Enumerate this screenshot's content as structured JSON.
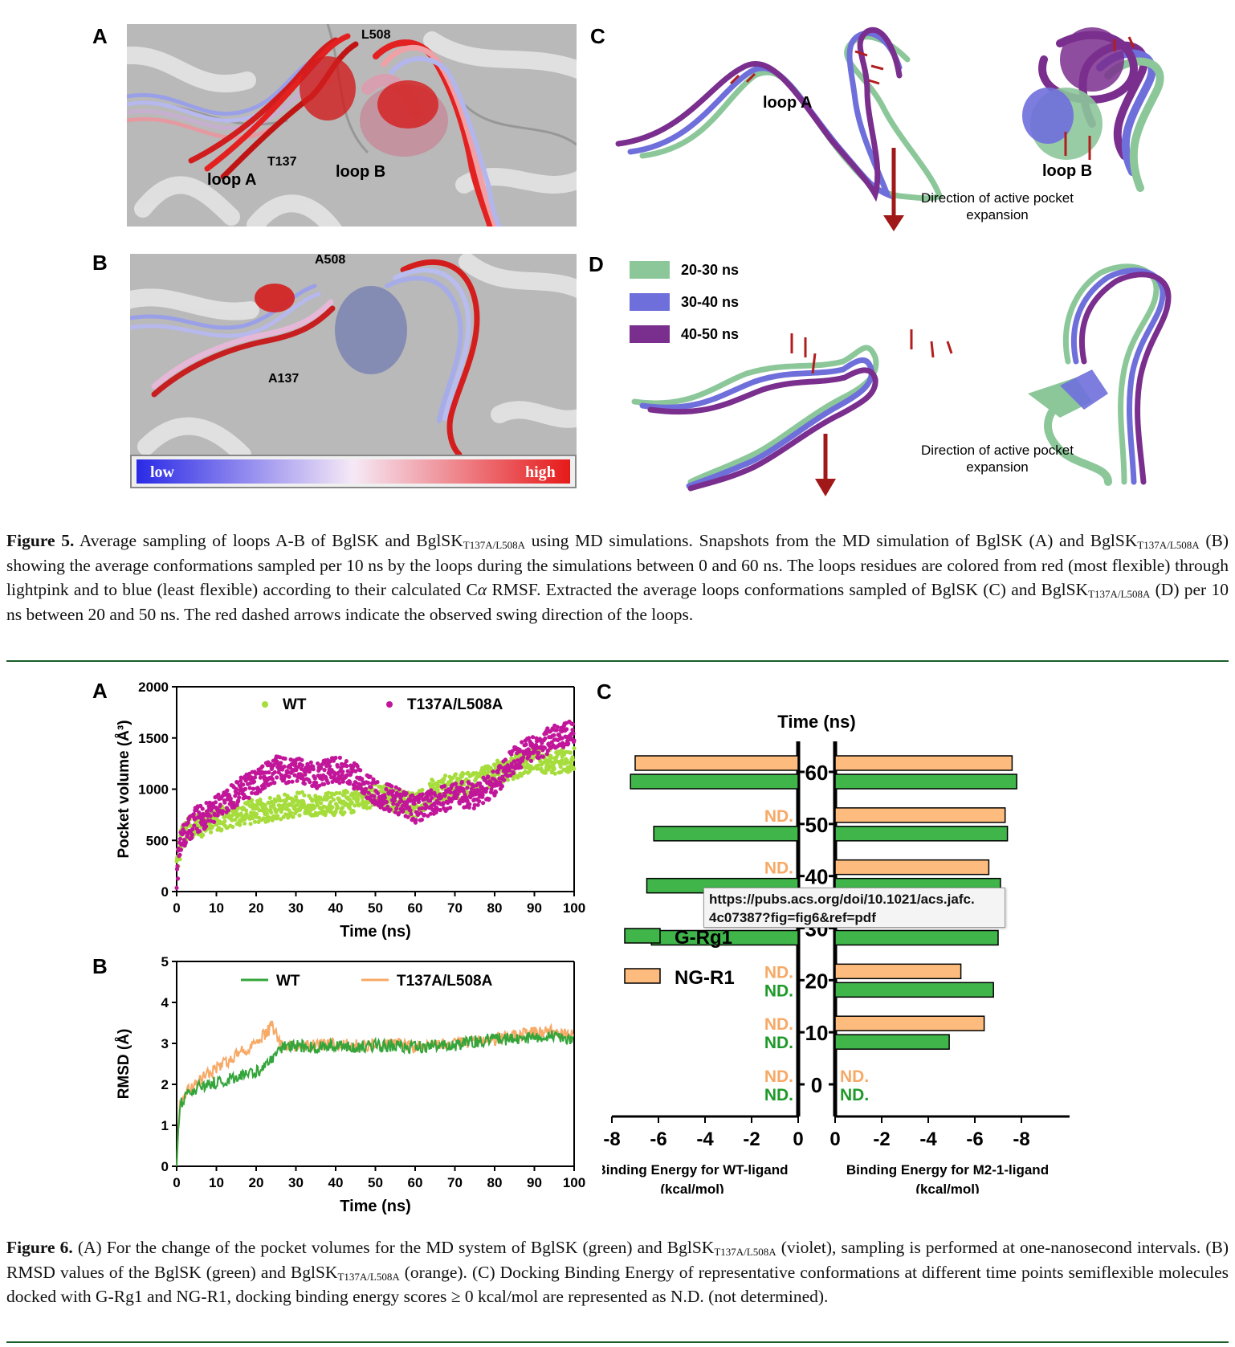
{
  "fig5": {
    "panels": {
      "a": "A",
      "b": "B",
      "c": "C",
      "d": "D"
    },
    "labels_a": {
      "loopA": "loop A",
      "t137": "T137",
      "loopB": "loop B",
      "l508": "L508"
    },
    "labels_b": {
      "a508": "A508",
      "a137": "A137"
    },
    "colorbar": {
      "low": "low",
      "high": "high"
    },
    "labels_c": {
      "loopA": "loop A",
      "loopB": "loop B",
      "direction_line1": "Direction of active pocket",
      "direction_line2": "expansion"
    },
    "legend_d": [
      {
        "label": "20-30 ns",
        "color": "#8cc79a"
      },
      {
        "label": "30-40 ns",
        "color": "#6f6fdb"
      },
      {
        "label": "40-50 ns",
        "color": "#7a2e8e"
      }
    ],
    "labels_d": {
      "direction_line1": "Direction of active pocket",
      "direction_line2": "expansion"
    },
    "caption": {
      "figlabel": "Figure 5.",
      "t1": " Average sampling of loops A-B of BglSK and BglSK",
      "sub1": "T137A/L508A",
      "t2": " using MD simulations. Snapshots from the MD simulation of BglSK (A) and BglSK",
      "sub2": "T137A/L508A",
      "t3": " (B) showing the average conformations sampled per 10 ns by the loops during the simulations between 0 and 60 ns. The loops residues are colored from red (most flexible) through lightpink and to blue (least flexible) according to their calculated C",
      "alpha": "α",
      "t4": " RMSF. Extracted the average loops conformations sampled of BglSK (C) and BglSK",
      "sub3": "T137A/L508A",
      "t5": " (D) per 10 ns between 20 and 50 ns. The red dashed arrows indicate the observed swing direction of the loops."
    }
  },
  "fig6": {
    "panels": {
      "a": "A",
      "b": "B",
      "c": "C"
    },
    "caption": {
      "figlabel": "Figure 6.",
      "t1": " (A) For the change of the pocket volumes for the MD system of BglSK (green) and BglSK",
      "sub1": "T137A/L508A",
      "t2": " (violet), sampling is performed at one-nanosecond intervals. (B) RMSD values of the BglSK (green) and BglSK",
      "sub2": "T137A/L508A",
      "t3": " (orange). (C) Docking Binding Energy of representative conformations at different time points semiflexible molecules docked with G-Rg1 and NG-R1, docking binding energy scores ≥ 0 kcal/mol are represented as N.D. (not determined)."
    }
  },
  "tooltip": {
    "line1": "https://pubs.acs.org/doi/10.1021/acs.jafc.",
    "line2": "4c07387?fig=fig6&ref=pdf"
  },
  "chart_data": [
    {
      "type": "scatter",
      "panel": "A",
      "xlabel": "Time (ns)",
      "ylabel": "Pocket volume (Å³)",
      "xlim": [
        0,
        100
      ],
      "ylim": [
        0,
        2000
      ],
      "xticks": [
        0,
        10,
        20,
        30,
        40,
        50,
        60,
        70,
        80,
        90,
        100
      ],
      "yticks": [
        0,
        500,
        1000,
        1500,
        2000
      ],
      "legend_position": "top",
      "series": [
        {
          "name": "WT",
          "color": "#a6dd3c",
          "trend_x": [
            0,
            1,
            2,
            3,
            5,
            8,
            10,
            15,
            20,
            25,
            30,
            35,
            40,
            45,
            50,
            55,
            60,
            65,
            70,
            75,
            80,
            85,
            90,
            95,
            100
          ],
          "trend_y": [
            220,
            480,
            560,
            600,
            640,
            680,
            700,
            760,
            780,
            820,
            850,
            860,
            840,
            900,
            930,
            900,
            830,
            1000,
            1030,
            1050,
            1150,
            1220,
            1300,
            1260,
            1300
          ]
        },
        {
          "name": "T137A/L508A",
          "color": "#c2169a",
          "trend_x": [
            0,
            1,
            2,
            3,
            5,
            8,
            10,
            15,
            20,
            25,
            30,
            35,
            40,
            45,
            50,
            55,
            60,
            65,
            70,
            75,
            80,
            85,
            90,
            95,
            100
          ],
          "trend_y": [
            150,
            460,
            560,
            620,
            700,
            760,
            820,
            960,
            1080,
            1200,
            1180,
            1120,
            1200,
            1130,
            950,
            900,
            800,
            880,
            950,
            940,
            1050,
            1300,
            1400,
            1500,
            1560
          ]
        }
      ]
    },
    {
      "type": "line",
      "panel": "B",
      "xlabel": "Time (ns)",
      "ylabel": "RMSD (Å)",
      "xlim": [
        0,
        100
      ],
      "ylim": [
        0,
        5
      ],
      "xticks": [
        0,
        10,
        20,
        30,
        40,
        50,
        60,
        70,
        80,
        90,
        100
      ],
      "yticks": [
        0,
        1,
        2,
        3,
        4,
        5
      ],
      "legend_position": "top",
      "series": [
        {
          "name": "WT",
          "color": "#34a53a",
          "x": [
            0,
            0.5,
            1,
            2,
            4,
            6,
            8,
            10,
            12,
            14,
            16,
            18,
            20,
            22,
            24,
            26,
            28,
            30,
            35,
            40,
            45,
            50,
            55,
            60,
            65,
            70,
            75,
            80,
            85,
            90,
            95,
            100
          ],
          "y": [
            0,
            1.1,
            1.5,
            1.7,
            1.85,
            1.95,
            2.0,
            2.05,
            2.1,
            2.15,
            2.2,
            2.25,
            2.3,
            2.4,
            2.6,
            2.85,
            2.95,
            2.95,
            2.9,
            2.95,
            2.9,
            2.95,
            2.95,
            2.9,
            2.95,
            2.95,
            3.05,
            3.1,
            3.1,
            3.15,
            3.2,
            3.05
          ]
        },
        {
          "name": "T137A/L508A",
          "color": "#f7a966",
          "x": [
            0,
            0.5,
            1,
            2,
            4,
            6,
            8,
            10,
            12,
            14,
            16,
            18,
            20,
            22,
            24,
            26,
            28,
            30,
            35,
            40,
            45,
            50,
            55,
            60,
            65,
            70,
            75,
            80,
            85,
            90,
            95,
            100
          ],
          "y": [
            0,
            1.2,
            1.55,
            1.75,
            1.95,
            2.1,
            2.25,
            2.4,
            2.5,
            2.65,
            2.8,
            2.9,
            3.05,
            3.2,
            3.4,
            3.0,
            2.95,
            2.9,
            2.95,
            3.0,
            2.95,
            2.95,
            3.0,
            2.9,
            2.95,
            3.0,
            3.05,
            3.1,
            3.2,
            3.25,
            3.3,
            3.2
          ]
        }
      ]
    },
    {
      "type": "bar",
      "panel": "C",
      "title": "Time (ns)",
      "xlabel_left": "Binding Energy for WT-ligand",
      "xlabel_left_unit": "(kcal/mol)",
      "xlabel_right": "Binding Energy for M2-1-ligand",
      "xlabel_right_unit": "(kcal/mol)",
      "xticks_left": [
        "-8",
        "-6",
        "-4",
        "-2",
        "0"
      ],
      "xticks_right": [
        "0",
        "-2",
        "-4",
        "-6",
        "-8"
      ],
      "xlim": [
        0,
        -8
      ],
      "categories": [
        60,
        50,
        40,
        30,
        20,
        10,
        0
      ],
      "nd_label": "ND.",
      "series": [
        {
          "name": "G-Rg1",
          "color": "#3fb54a",
          "wt": [
            -7.2,
            -6.2,
            -6.5,
            -6.3,
            null,
            null,
            null
          ],
          "m21": [
            -7.8,
            -7.4,
            -7.1,
            -7.0,
            -6.8,
            -4.9,
            null
          ]
        },
        {
          "name": "NG-R1",
          "color": "#fdbc7d",
          "wt": [
            -7.0,
            null,
            null,
            null,
            null,
            null,
            null
          ],
          "m21": [
            -7.6,
            -7.3,
            -6.6,
            -6.9,
            -5.4,
            -6.4,
            null
          ]
        }
      ]
    }
  ]
}
